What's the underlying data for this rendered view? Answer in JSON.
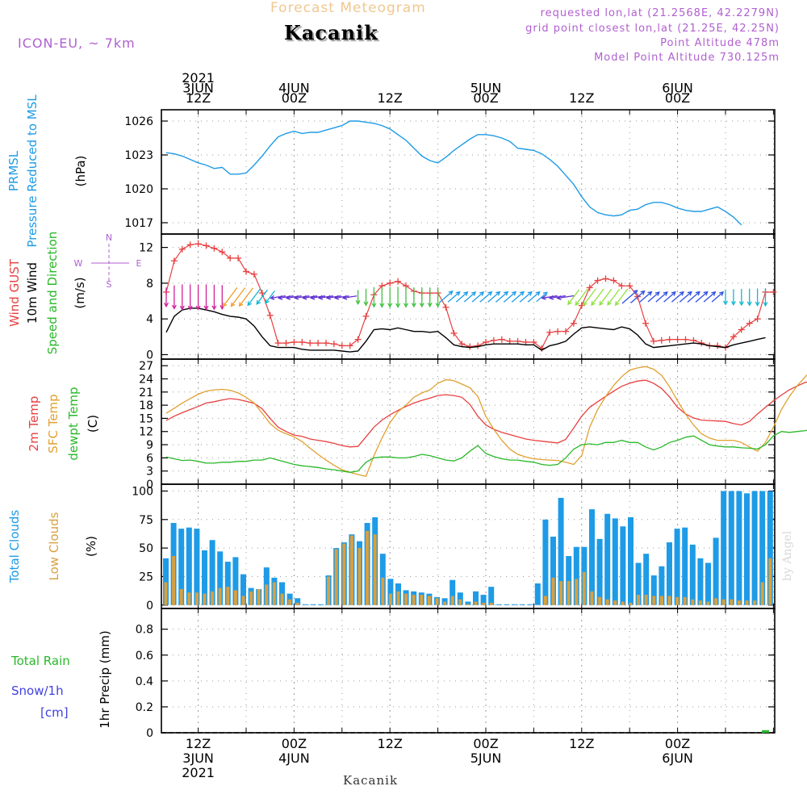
{
  "header": {
    "title": "Forecast Meteogram",
    "place": "Kacanik",
    "model": "ICON-EU, ~ 7km",
    "requested": "requested lon,lat (21.2568E, 42.2279N)",
    "grid_point": "grid point closest lon,lat (21.25E, 42.25N)",
    "point_altitude": "Point Altitude 478m",
    "model_altitude": "Model Point Altitude 730.125m",
    "signature": "by Angel",
    "footer": "Kacanik"
  },
  "time_axis": {
    "start": "2021-06-03T08Z",
    "step_hours": 1,
    "labels": [
      {
        "day_hour": 4,
        "top": [
          "2021",
          "3JUN",
          "12Z"
        ],
        "bottom": [
          "12Z",
          "3JUN",
          "2021"
        ]
      },
      {
        "day_hour": 16,
        "top": [
          "4JUN",
          "00Z"
        ],
        "bottom": [
          "00Z",
          "4JUN"
        ]
      },
      {
        "day_hour": 28,
        "top": [
          "12Z"
        ],
        "bottom": [
          "12Z"
        ]
      },
      {
        "day_hour": 40,
        "top": [
          "5JUN",
          "00Z"
        ],
        "bottom": [
          "00Z",
          "5JUN"
        ]
      },
      {
        "day_hour": 52,
        "top": [
          "12Z"
        ],
        "bottom": [
          "12Z"
        ]
      },
      {
        "day_hour": 64,
        "top": [
          "6JUN",
          "00Z"
        ],
        "bottom": [
          "00Z",
          "6JUN"
        ]
      }
    ]
  },
  "panel_labels": {
    "pressure": [
      {
        "text": "PRMSL",
        "color": "#1e9be6"
      },
      {
        "text": "Pressure Reduced to MSL",
        "color": "#1e9be6"
      },
      {
        "text": "(hPa)",
        "color": "#000000"
      }
    ],
    "wind": [
      {
        "text": "Wind GUST",
        "color": "#e84040"
      },
      {
        "text": "10m Wind",
        "color": "#000000"
      },
      {
        "text": "Speed and Direction",
        "color": "#2ab82a"
      },
      {
        "text": "(m/s)",
        "color": "#000000"
      }
    ],
    "compass": {
      "n": "N",
      "s": "S",
      "w": "W",
      "e": "E",
      "color": "#b060d0"
    },
    "temperature": [
      {
        "text": "2m Temp",
        "color": "#e84040"
      },
      {
        "text": "SFC Temp",
        "color": "#e0a030"
      },
      {
        "text": "dewpt Temp",
        "color": "#2ab82a"
      },
      {
        "text": "(C)",
        "color": "#000000"
      }
    ],
    "clouds": [
      {
        "text": "Total Clouds",
        "color": "#1e9be6"
      },
      {
        "text": "Low Clouds",
        "color": "#d8a040"
      },
      {
        "text": "(%)",
        "color": "#000000"
      }
    ],
    "precip": [
      {
        "text": "1hr Precip (mm)",
        "color": "#000000"
      }
    ],
    "precip_legend": [
      {
        "text": "Total  Rain",
        "color": "#2ab82a"
      },
      {
        "text": "Snow/1h",
        "color": "#4040e0"
      },
      {
        "text": "[cm]",
        "color": "#4040e0"
      }
    ]
  },
  "colors": {
    "pressure": "#1e9be6",
    "gust": "#e84040",
    "wind": "#000000",
    "temp2m": "#e84040",
    "sfc_temp": "#e0a030",
    "dewpoint": "#2ab82a",
    "total_clouds": "#1e9be6",
    "low_clouds": "#d8a040",
    "rain": "#2ab82a",
    "grid": "#999999"
  },
  "chart_data": [
    {
      "id": "pressure",
      "type": "line",
      "ylabel": "(hPa)",
      "ylim": [
        1016,
        1027
      ],
      "yticks": [
        1017,
        1020,
        1023,
        1026
      ],
      "series": [
        {
          "name": "PRMSL",
          "color": "#1e9be6",
          "values": [
            1023.2,
            1023.1,
            1022.9,
            1022.6,
            1022.3,
            1022.1,
            1021.8,
            1021.9,
            1021.3,
            1021.3,
            1021.4,
            1022.1,
            1022.9,
            1023.8,
            1024.6,
            1024.9,
            1025.1,
            1024.9,
            1025.0,
            1025.0,
            1025.2,
            1025.4,
            1025.6,
            1026.0,
            1026.0,
            1025.9,
            1025.8,
            1025.6,
            1025.3,
            1024.8,
            1024.3,
            1023.6,
            1022.9,
            1022.5,
            1022.3,
            1022.8,
            1023.4,
            1023.9,
            1024.4,
            1024.8,
            1024.8,
            1024.7,
            1024.5,
            1024.2,
            1023.6,
            1023.5,
            1023.4,
            1023.1,
            1022.6,
            1022.0,
            1021.2,
            1020.4,
            1019.3,
            1018.4,
            1017.9,
            1017.7,
            1017.6,
            1017.7,
            1018.1,
            1018.2,
            1018.6,
            1018.8,
            1018.8,
            1018.6,
            1018.3,
            1018.1,
            1018.0,
            1018.0,
            1018.2,
            1018.4,
            1018.0,
            1017.5,
            1016.8
          ]
        }
      ]
    },
    {
      "id": "wind",
      "type": "line",
      "ylabel": "(m/s)",
      "ylim": [
        -0.5,
        13.5
      ],
      "yticks": [
        0,
        4,
        8,
        12
      ],
      "series": [
        {
          "name": "Wind GUST",
          "color": "#e84040",
          "marker": "+",
          "values": [
            7.0,
            10.5,
            11.8,
            12.3,
            12.4,
            12.2,
            11.9,
            11.5,
            10.8,
            10.8,
            9.3,
            9.0,
            6.9,
            4.4,
            1.3,
            1.3,
            1.4,
            1.4,
            1.3,
            1.3,
            1.3,
            1.2,
            1.0,
            1.0,
            1.7,
            4.3,
            6.7,
            7.7,
            8.0,
            8.2,
            7.7,
            7.1,
            6.9,
            6.9,
            6.9,
            5.3,
            2.4,
            1.2,
            0.9,
            1.0,
            1.4,
            1.6,
            1.7,
            1.5,
            1.5,
            1.4,
            1.4,
            0.7,
            2.5,
            2.6,
            2.6,
            3.5,
            5.5,
            7.5,
            8.3,
            8.5,
            8.3,
            7.7,
            7.7,
            6.5,
            3.5,
            1.5,
            1.6,
            1.7,
            1.7,
            1.7,
            1.6,
            1.3,
            1.0,
            1.0,
            0.8,
            2.0,
            2.8,
            3.5,
            4.0,
            7.0,
            7.0
          ]
        },
        {
          "name": "10m Wind",
          "color": "#000000",
          "values": [
            2.5,
            4.3,
            5.0,
            5.2,
            5.2,
            5.0,
            4.8,
            4.5,
            4.3,
            4.2,
            4.0,
            3.2,
            2.0,
            1.0,
            0.8,
            0.8,
            0.8,
            0.6,
            0.5,
            0.5,
            0.5,
            0.5,
            0.4,
            0.3,
            0.4,
            1.5,
            2.8,
            2.9,
            2.8,
            3.0,
            2.8,
            2.6,
            2.6,
            2.5,
            2.6,
            1.9,
            1.1,
            0.9,
            0.8,
            0.9,
            1.1,
            1.2,
            1.2,
            1.2,
            1.2,
            1.1,
            1.1,
            0.5,
            1.0,
            1.2,
            1.5,
            2.3,
            3.0,
            3.1,
            3.0,
            2.9,
            2.8,
            3.1,
            2.9,
            2.2,
            1.2,
            0.8,
            0.9,
            1.0,
            1.1,
            1.2,
            1.3,
            1.2,
            1.0,
            0.9,
            0.8,
            1.1,
            1.3,
            1.5,
            1.7,
            1.9
          ]
        }
      ],
      "arrows": {
        "description": "10m wind direction arrows",
        "ranges": [
          {
            "from": 0,
            "to": 8,
            "color": "#d0209a",
            "direction": "toward-south"
          },
          {
            "from": 8,
            "to": 11,
            "color": "#f0a030",
            "direction": "toward-southwest"
          },
          {
            "from": 11,
            "to": 14,
            "color": "#10b8d0",
            "direction": "toward-southwest"
          },
          {
            "from": 14,
            "to": 24,
            "color": "#6030d0",
            "direction": "toward-west"
          },
          {
            "from": 24,
            "to": 35,
            "color": "#40c040",
            "direction": "toward-south"
          },
          {
            "from": 35,
            "to": 48,
            "color": "#1e9be6",
            "direction": "toward-northeast"
          },
          {
            "from": 48,
            "to": 51,
            "color": "#6030d0",
            "direction": "toward-west"
          },
          {
            "from": 51,
            "to": 58,
            "color": "#90e040",
            "direction": "toward-southwest"
          },
          {
            "from": 58,
            "to": 70,
            "color": "#3050e0",
            "direction": "toward-northeast"
          },
          {
            "from": 70,
            "to": 76,
            "color": "#10b8d0",
            "direction": "toward-south"
          }
        ]
      }
    },
    {
      "id": "temperature",
      "type": "line",
      "ylabel": "(C)",
      "ylim": [
        0,
        28.5
      ],
      "yticks": [
        0,
        3,
        6,
        9,
        12,
        15,
        18,
        21,
        24,
        27
      ],
      "series": [
        {
          "name": "2m Temp",
          "color": "#e84040",
          "values": [
            14.5,
            15.5,
            16.3,
            17.0,
            17.7,
            18.5,
            18.8,
            19.2,
            19.5,
            19.3,
            18.9,
            18.4,
            17.2,
            15.0,
            13.0,
            12.0,
            11.2,
            10.9,
            10.3,
            10.0,
            9.7,
            9.3,
            8.8,
            8.5,
            8.6,
            10.8,
            13.0,
            14.6,
            15.8,
            16.8,
            17.7,
            18.5,
            19.1,
            19.6,
            20.2,
            20.4,
            20.2,
            19.8,
            18.2,
            15.5,
            13.5,
            12.5,
            11.8,
            11.3,
            10.8,
            10.3,
            10.0,
            9.8,
            9.6,
            9.4,
            10.2,
            12.8,
            15.5,
            17.5,
            18.8,
            20.0,
            21.2,
            22.3,
            23.0,
            23.5,
            23.7,
            23.0,
            21.8,
            19.9,
            17.5,
            16.0,
            15.1,
            14.6,
            14.5,
            14.4,
            14.3,
            13.8,
            13.5,
            14.3,
            16.0,
            17.5,
            19.0,
            20.3,
            21.5,
            22.4,
            23.2,
            23.5
          ]
        },
        {
          "name": "SFC Temp",
          "color": "#e0a030",
          "values": [
            16.2,
            17.3,
            18.5,
            19.5,
            20.5,
            21.2,
            21.5,
            21.6,
            21.4,
            20.8,
            19.8,
            18.5,
            16.2,
            13.8,
            12.3,
            11.5,
            10.8,
            9.7,
            8.2,
            6.8,
            5.5,
            4.3,
            3.3,
            2.7,
            2.2,
            1.8,
            6.5,
            10.5,
            14.0,
            16.5,
            18.0,
            19.8,
            20.8,
            21.5,
            23.0,
            23.8,
            23.6,
            22.8,
            22.0,
            20.0,
            15.5,
            12.5,
            10.0,
            8.0,
            6.8,
            6.2,
            5.8,
            5.6,
            5.5,
            5.4,
            5.0,
            4.5,
            6.5,
            13.0,
            17.0,
            20.0,
            22.5,
            24.5,
            26.0,
            26.5,
            26.8,
            26.2,
            24.8,
            22.2,
            19.0,
            16.0,
            13.5,
            11.5,
            10.5,
            10.0,
            10.0,
            10.0,
            9.5,
            8.5,
            7.5,
            9.5,
            13.0,
            17.0,
            20.0,
            22.5,
            24.5,
            26.5,
            27.0
          ]
        },
        {
          "name": "dewpt Temp",
          "color": "#2ab82a",
          "values": [
            6.2,
            5.8,
            5.4,
            5.5,
            5.2,
            4.8,
            4.8,
            5.0,
            5.0,
            5.2,
            5.2,
            5.5,
            5.5,
            6.0,
            5.5,
            5.0,
            4.5,
            4.2,
            4.0,
            3.8,
            3.5,
            3.3,
            3.0,
            2.7,
            3.0,
            5.0,
            6.0,
            6.2,
            6.2,
            6.0,
            6.0,
            6.3,
            6.8,
            6.5,
            6.0,
            5.5,
            5.3,
            6.0,
            7.5,
            8.8,
            7.0,
            6.3,
            5.8,
            5.5,
            5.5,
            5.2,
            5.0,
            4.5,
            4.3,
            4.5,
            6.0,
            8.0,
            9.0,
            9.2,
            9.0,
            9.5,
            9.5,
            10.0,
            9.5,
            9.5,
            8.5,
            7.8,
            8.5,
            9.5,
            10.0,
            10.7,
            11.0,
            10.0,
            9.0,
            8.7,
            8.5,
            8.5,
            8.3,
            8.2,
            8.0,
            9.0,
            11.0,
            12.0,
            11.8,
            12.0,
            12.2,
            12.5,
            13.0
          ]
        }
      ]
    },
    {
      "id": "clouds",
      "type": "bar",
      "ylabel": "(%)",
      "ylim": [
        -3,
        106
      ],
      "yticks": [
        0,
        25,
        50,
        75,
        100
      ],
      "series": [
        {
          "name": "Total Clouds",
          "color": "#1e9be6",
          "values": [
            41,
            72,
            67,
            68,
            67,
            48,
            57,
            47,
            38,
            42,
            27,
            15,
            14,
            33,
            24,
            20,
            10,
            6,
            0,
            0,
            0,
            26,
            50,
            55,
            62,
            56,
            72,
            77,
            45,
            23,
            19,
            13,
            12,
            11,
            10,
            7,
            6,
            22,
            11,
            3,
            12,
            9,
            16,
            0,
            0,
            0,
            0,
            0,
            19,
            75,
            60,
            94,
            43,
            51,
            51,
            84,
            58,
            80,
            76,
            69,
            77,
            37,
            45,
            26,
            34,
            55,
            67,
            68,
            53,
            41,
            37,
            59,
            100,
            100,
            100,
            98,
            100,
            100,
            100
          ]
        },
        {
          "name": "Low Clouds",
          "color": "#d8a040",
          "values": [
            20,
            43,
            14,
            11,
            11,
            10,
            12,
            15,
            16,
            13,
            8,
            12,
            14,
            18,
            20,
            10,
            5,
            2,
            0,
            0,
            0,
            25,
            49,
            54,
            61,
            50,
            65,
            62,
            24,
            10,
            12,
            10,
            9,
            9,
            8,
            6,
            3,
            8,
            5,
            1,
            3,
            2,
            2,
            0,
            0,
            0,
            0,
            0,
            0,
            8,
            24,
            21,
            21,
            23,
            29,
            12,
            7,
            5,
            4,
            3,
            2,
            9,
            9,
            8,
            8,
            8,
            7,
            7,
            5,
            4,
            3,
            6,
            5,
            5,
            4,
            4,
            4,
            20,
            41
          ]
        }
      ]
    },
    {
      "id": "precip",
      "type": "bar",
      "ylabel": "1hr Precip (mm)",
      "ylim": [
        0,
        0.96
      ],
      "yticks": [
        0,
        0.2,
        0.4,
        0.6,
        0.8
      ],
      "series": [
        {
          "name": "Total Rain",
          "color": "#2ab82a",
          "values": [
            0,
            0,
            0,
            0,
            0,
            0,
            0,
            0,
            0,
            0,
            0,
            0,
            0,
            0,
            0,
            0,
            0,
            0,
            0,
            0,
            0,
            0,
            0,
            0,
            0,
            0,
            0,
            0,
            0,
            0,
            0,
            0,
            0,
            0,
            0,
            0,
            0,
            0,
            0,
            0,
            0,
            0,
            0,
            0,
            0,
            0,
            0,
            0,
            0,
            0,
            0,
            0,
            0,
            0,
            0,
            0,
            0,
            0,
            0,
            0,
            0,
            0,
            0,
            0,
            0,
            0,
            0,
            0,
            0,
            0,
            0,
            0,
            0,
            0,
            0,
            0.02
          ]
        }
      ]
    }
  ]
}
